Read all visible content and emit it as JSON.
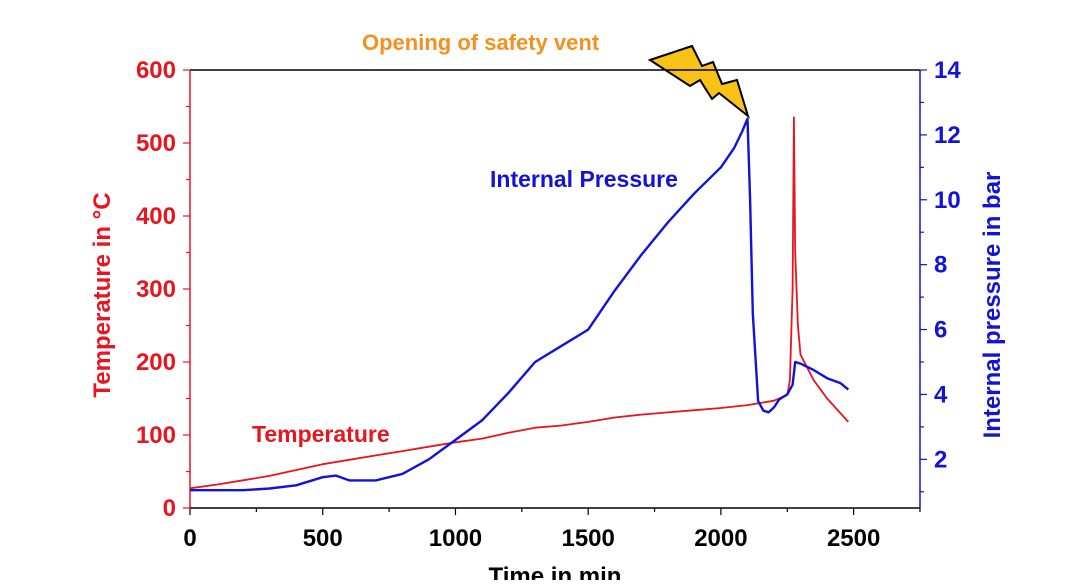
{
  "chart_data": {
    "type": "line",
    "title": "",
    "xlabel": "Time in min",
    "ylabel_left": "Temperature in °C",
    "ylabel_right": "Internal pressure in bar",
    "xlim": [
      0,
      2750
    ],
    "ylim_left": [
      0,
      600
    ],
    "ylim_right": [
      0.5,
      14
    ],
    "x_ticks": [
      0,
      500,
      1000,
      1500,
      2000,
      2500
    ],
    "y_left_ticks": [
      0,
      100,
      200,
      300,
      400,
      500,
      600
    ],
    "y_right_ticks": [
      2,
      4,
      6,
      8,
      10,
      12,
      14
    ],
    "grid": false,
    "legend": "none",
    "colors": {
      "temperature": "#e8141e",
      "pressure": "#1212d8",
      "annotation": "#f5901e",
      "bolt": "#f9c315"
    },
    "annotations": {
      "vent": "Opening of safety vent",
      "pressure_label": "Internal Pressure",
      "temperature_label": "Temperature"
    },
    "series": [
      {
        "name": "Temperature",
        "axis": "left",
        "x": [
          0,
          100,
          200,
          300,
          400,
          500,
          600,
          700,
          800,
          900,
          1000,
          1100,
          1200,
          1300,
          1400,
          1500,
          1600,
          1700,
          1800,
          1900,
          2000,
          2100,
          2200,
          2250,
          2260,
          2270,
          2275,
          2280,
          2290,
          2300,
          2350,
          2400,
          2450,
          2480
        ],
        "y": [
          27,
          32,
          38,
          44,
          52,
          60,
          66,
          72,
          78,
          84,
          90,
          95,
          103,
          110,
          113,
          118,
          124,
          128,
          131,
          134,
          137,
          141,
          147,
          155,
          175,
          300,
          535,
          350,
          250,
          210,
          175,
          150,
          130,
          118
        ]
      },
      {
        "name": "Internal Pressure",
        "axis": "right",
        "x": [
          0,
          100,
          200,
          300,
          400,
          500,
          550,
          600,
          700,
          800,
          900,
          1000,
          1100,
          1200,
          1300,
          1400,
          1500,
          1600,
          1700,
          1800,
          1900,
          2000,
          2050,
          2080,
          2100,
          2110,
          2120,
          2140,
          2160,
          2180,
          2200,
          2220,
          2250,
          2270,
          2280,
          2300,
          2350,
          2400,
          2450,
          2480
        ],
        "y": [
          1.05,
          1.05,
          1.05,
          1.1,
          1.2,
          1.45,
          1.5,
          1.35,
          1.35,
          1.55,
          2.0,
          2.6,
          3.2,
          4.05,
          5.0,
          5.5,
          6.0,
          7.2,
          8.3,
          9.3,
          10.2,
          11.0,
          11.6,
          12.1,
          12.5,
          10.0,
          6.5,
          3.8,
          3.5,
          3.45,
          3.6,
          3.85,
          4.0,
          4.3,
          5.0,
          4.95,
          4.75,
          4.5,
          4.35,
          4.15
        ]
      }
    ]
  }
}
